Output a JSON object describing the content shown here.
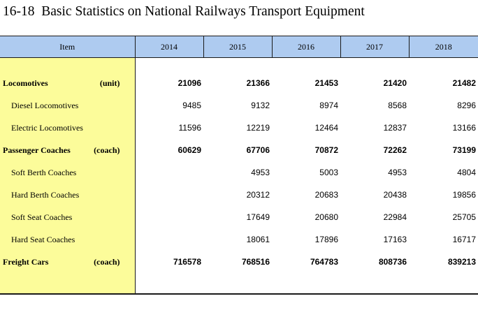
{
  "title": "16-18  Basic Statistics on National Railways Transport Equipment",
  "header": {
    "item": "Item",
    "years": [
      "2014",
      "2015",
      "2016",
      "2017",
      "2018"
    ]
  },
  "rows": [
    {
      "label": "Locomotives",
      "unit": "(unit)",
      "bold": true,
      "sub": false,
      "values": [
        "21096",
        "21366",
        "21453",
        "21420",
        "21482"
      ]
    },
    {
      "label": "Diesel Locomotives",
      "unit": "",
      "bold": false,
      "sub": true,
      "values": [
        "9485",
        "9132",
        "8974",
        "8568",
        "8296"
      ]
    },
    {
      "label": "Electric Locomotives",
      "unit": "",
      "bold": false,
      "sub": true,
      "values": [
        "11596",
        "12219",
        "12464",
        "12837",
        "13166"
      ]
    },
    {
      "label": "Passenger Coaches",
      "unit": "(coach)",
      "bold": true,
      "sub": false,
      "values": [
        "60629",
        "67706",
        "70872",
        "72262",
        "73199"
      ]
    },
    {
      "label": "Soft Berth Coaches",
      "unit": "",
      "bold": false,
      "sub": true,
      "values": [
        "",
        "4953",
        "5003",
        "4953",
        "4804"
      ]
    },
    {
      "label": "Hard Berth Coaches",
      "unit": "",
      "bold": false,
      "sub": true,
      "values": [
        "",
        "20312",
        "20683",
        "20438",
        "19856"
      ]
    },
    {
      "label": "Soft Seat Coaches",
      "unit": "",
      "bold": false,
      "sub": true,
      "values": [
        "",
        "17649",
        "20680",
        "22984",
        "25705"
      ]
    },
    {
      "label": "Hard Seat Coaches",
      "unit": "",
      "bold": false,
      "sub": true,
      "values": [
        "",
        "18061",
        "17896",
        "17163",
        "16717"
      ]
    },
    {
      "label": "Freight Cars",
      "unit": "(coach)",
      "bold": true,
      "sub": false,
      "values": [
        "716578",
        "768516",
        "764783",
        "808736",
        "839213"
      ]
    }
  ]
}
